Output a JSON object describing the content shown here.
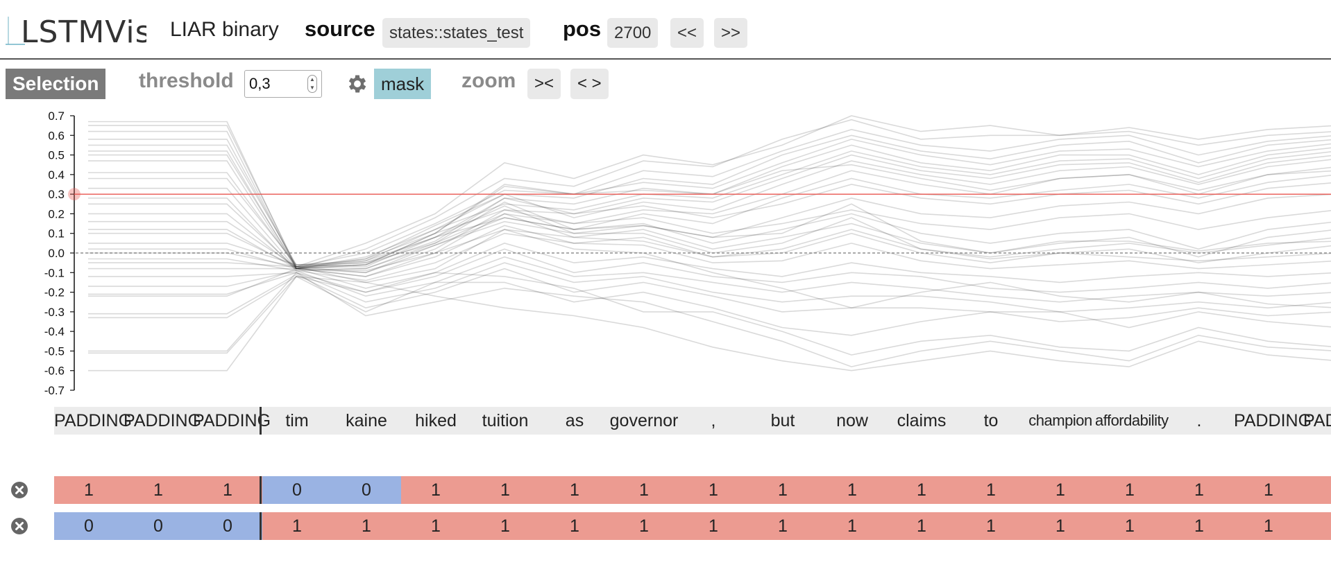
{
  "header": {
    "logo_text": "LSTMVis",
    "dataset_title": "LIAR binary",
    "source_label": "source",
    "source_value": "states::states_test",
    "pos_label": "pos",
    "pos_value": "2700",
    "prev_label": "<<",
    "next_label": ">>"
  },
  "toolbar": {
    "selection_label": "Selection",
    "threshold_label": "threshold",
    "threshold_value": "0,3",
    "settings_icon": "gear-icon",
    "mask_label": "mask",
    "zoom_label": "zoom",
    "zoom_in_label": "><",
    "zoom_out_label": "< >"
  },
  "chart_data": {
    "type": "line",
    "title": "",
    "xlabel": "",
    "ylabel": "",
    "ylim": [
      -0.7,
      0.7
    ],
    "yticks": [
      "0.7",
      "0.6",
      "0.5",
      "0.4",
      "0.3",
      "0.2",
      "0.1",
      "0.0",
      "-0.1",
      "-0.2",
      "-0.3",
      "-0.4",
      "-0.5",
      "-0.6",
      "-0.7"
    ],
    "threshold": 0.3,
    "threshold_color": "#e8554f",
    "zero_line": "dashed",
    "line_color": "#000000",
    "x": [
      "PADDING",
      "PADDING",
      "PADDING",
      "tim",
      "kaine",
      "hiked",
      "tuition",
      "as",
      "governor",
      ",",
      "but",
      "now",
      "claims",
      "to",
      "champion",
      "affordability",
      ".",
      "PADDING",
      "PADDING"
    ],
    "series": [
      {
        "values": [
          0.67,
          0.67,
          0.67,
          -0.08,
          0.02,
          0.18,
          0.38,
          0.34,
          0.47,
          0.44,
          0.58,
          0.68,
          0.58,
          0.6,
          0.6,
          0.62,
          0.55,
          0.6,
          0.62
        ]
      },
      {
        "values": [
          0.65,
          0.65,
          0.65,
          -0.07,
          0.0,
          0.15,
          0.32,
          0.3,
          0.42,
          0.39,
          0.52,
          0.63,
          0.55,
          0.52,
          0.58,
          0.6,
          0.5,
          0.57,
          0.6
        ]
      },
      {
        "values": [
          0.62,
          0.62,
          0.62,
          -0.08,
          -0.02,
          0.12,
          0.3,
          0.28,
          0.38,
          0.35,
          0.5,
          0.6,
          0.52,
          0.48,
          0.55,
          0.57,
          0.46,
          0.55,
          0.58
        ]
      },
      {
        "values": [
          0.58,
          0.58,
          0.58,
          -0.07,
          -0.03,
          0.1,
          0.34,
          0.3,
          0.36,
          0.33,
          0.46,
          0.58,
          0.5,
          0.45,
          0.52,
          0.53,
          0.44,
          0.52,
          0.56
        ]
      },
      {
        "values": [
          0.55,
          0.55,
          0.55,
          -0.06,
          -0.05,
          0.08,
          0.28,
          0.25,
          0.33,
          0.3,
          0.44,
          0.55,
          0.46,
          0.42,
          0.5,
          0.5,
          0.4,
          0.5,
          0.54
        ]
      },
      {
        "values": [
          0.52,
          0.52,
          0.52,
          -0.08,
          -0.04,
          0.12,
          0.25,
          0.22,
          0.3,
          0.28,
          0.4,
          0.52,
          0.44,
          0.4,
          0.47,
          0.48,
          0.38,
          0.48,
          0.52
        ]
      },
      {
        "values": [
          0.5,
          0.5,
          0.5,
          -0.07,
          -0.06,
          0.1,
          0.22,
          0.2,
          0.28,
          0.26,
          0.38,
          0.5,
          0.42,
          0.38,
          0.45,
          0.46,
          0.36,
          0.46,
          0.5
        ]
      },
      {
        "values": [
          0.47,
          0.47,
          0.47,
          -0.08,
          -0.03,
          0.14,
          0.3,
          0.18,
          0.26,
          0.22,
          0.35,
          0.47,
          0.4,
          0.35,
          0.42,
          0.44,
          0.35,
          0.44,
          0.48
        ]
      },
      {
        "values": [
          0.41,
          0.41,
          0.41,
          -0.07,
          -0.08,
          0.05,
          0.2,
          0.15,
          0.22,
          0.2,
          0.3,
          0.42,
          0.35,
          0.3,
          0.38,
          0.4,
          0.3,
          0.4,
          0.44
        ]
      },
      {
        "values": [
          0.38,
          0.38,
          0.38,
          -0.06,
          -0.07,
          0.08,
          0.18,
          0.12,
          0.2,
          0.15,
          0.28,
          0.38,
          0.3,
          0.28,
          0.32,
          0.35,
          0.28,
          0.36,
          0.4
        ]
      },
      {
        "values": [
          0.33,
          0.33,
          0.33,
          -0.08,
          -0.06,
          0.06,
          0.28,
          0.2,
          0.24,
          0.18,
          0.25,
          0.35,
          0.28,
          0.25,
          0.3,
          0.32,
          0.25,
          0.33,
          0.36
        ]
      },
      {
        "values": [
          0.28,
          0.28,
          0.28,
          -0.09,
          -0.08,
          0.04,
          0.16,
          0.1,
          0.14,
          0.08,
          0.18,
          0.28,
          0.2,
          0.18,
          0.24,
          0.26,
          0.2,
          0.28,
          0.3
        ]
      },
      {
        "values": [
          0.2,
          0.2,
          0.2,
          -0.08,
          -0.1,
          0.02,
          0.22,
          0.15,
          0.18,
          0.1,
          0.15,
          0.22,
          0.15,
          0.12,
          0.18,
          0.2,
          0.12,
          0.18,
          0.22
        ]
      },
      {
        "values": [
          0.16,
          0.16,
          0.16,
          -0.07,
          -0.05,
          0.05,
          0.26,
          0.12,
          0.15,
          0.05,
          0.12,
          0.2,
          0.1,
          0.05,
          0.1,
          0.12,
          0.02,
          0.12,
          0.16
        ]
      },
      {
        "values": [
          0.12,
          0.12,
          0.12,
          -0.08,
          -0.09,
          0.0,
          0.2,
          0.08,
          0.12,
          0.02,
          0.08,
          0.15,
          0.05,
          0.0,
          0.05,
          0.08,
          -0.02,
          0.08,
          0.12
        ]
      },
      {
        "values": [
          0.05,
          0.05,
          0.05,
          -0.06,
          -0.04,
          0.08,
          0.24,
          0.1,
          0.1,
          0.0,
          0.05,
          0.18,
          0.02,
          -0.02,
          0.02,
          0.05,
          0.0,
          0.04,
          0.08
        ]
      },
      {
        "values": [
          0.02,
          0.02,
          0.02,
          -0.08,
          -0.12,
          -0.02,
          0.14,
          0.05,
          0.08,
          -0.02,
          0.0,
          0.1,
          0.0,
          -0.05,
          0.0,
          0.02,
          -0.05,
          0.0,
          0.04
        ]
      },
      {
        "values": [
          0.0,
          0.0,
          0.0,
          -0.07,
          -0.1,
          0.04,
          0.18,
          0.12,
          0.14,
          0.08,
          0.1,
          0.25,
          0.06,
          0.0,
          0.06,
          0.06,
          0.01,
          0.05,
          0.06
        ]
      },
      {
        "values": [
          -0.03,
          -0.03,
          -0.03,
          -0.09,
          -0.14,
          -0.05,
          0.1,
          0.05,
          0.04,
          -0.05,
          -0.04,
          0.05,
          -0.04,
          -0.08,
          -0.06,
          -0.04,
          -0.08,
          -0.06,
          -0.04
        ]
      },
      {
        "values": [
          -0.05,
          -0.05,
          -0.05,
          -0.07,
          -0.15,
          -0.08,
          0.12,
          0.08,
          0.06,
          -0.02,
          0.02,
          0.12,
          0.02,
          -0.03,
          0.0,
          -0.02,
          -0.04,
          -0.02,
          0.0
        ]
      },
      {
        "values": [
          -0.08,
          -0.08,
          -0.08,
          -0.08,
          -0.18,
          -0.1,
          0.05,
          -0.05,
          -0.02,
          -0.08,
          -0.12,
          -0.05,
          -0.1,
          -0.12,
          -0.15,
          -0.12,
          -0.1,
          -0.12,
          -0.1
        ]
      },
      {
        "values": [
          -0.12,
          -0.12,
          -0.12,
          -0.1,
          -0.2,
          -0.12,
          0.02,
          -0.1,
          -0.05,
          -0.12,
          -0.15,
          -0.1,
          -0.12,
          -0.18,
          -0.2,
          -0.18,
          -0.15,
          -0.18,
          -0.15
        ]
      },
      {
        "values": [
          -0.17,
          -0.17,
          -0.17,
          -0.09,
          -0.22,
          -0.15,
          -0.02,
          -0.12,
          -0.1,
          -0.15,
          -0.2,
          -0.15,
          -0.18,
          -0.22,
          -0.25,
          -0.22,
          -0.2,
          -0.22,
          -0.2
        ]
      },
      {
        "values": [
          -0.21,
          -0.21,
          -0.21,
          -0.1,
          -0.25,
          -0.18,
          -0.05,
          -0.15,
          -0.12,
          -0.2,
          -0.25,
          -0.22,
          -0.22,
          -0.25,
          -0.3,
          -0.28,
          -0.25,
          -0.28,
          -0.25
        ]
      },
      {
        "values": [
          -0.31,
          -0.31,
          -0.31,
          -0.11,
          -0.28,
          -0.2,
          -0.08,
          -0.2,
          -0.15,
          -0.22,
          -0.3,
          -0.28,
          -0.28,
          -0.3,
          -0.35,
          -0.33,
          -0.28,
          -0.32,
          -0.3
        ]
      },
      {
        "values": [
          -0.33,
          -0.33,
          -0.33,
          -0.12,
          -0.3,
          -0.15,
          -0.15,
          -0.25,
          -0.2,
          -0.28,
          -0.38,
          -0.42,
          -0.35,
          -0.3,
          -0.3,
          -0.38,
          -0.3,
          -0.35,
          -0.38
        ]
      },
      {
        "values": [
          -0.5,
          -0.5,
          -0.5,
          -0.1,
          -0.32,
          -0.25,
          -0.18,
          -0.22,
          -0.25,
          -0.35,
          -0.45,
          -0.58,
          -0.5,
          -0.45,
          -0.5,
          -0.55,
          -0.42,
          -0.48,
          -0.5
        ]
      },
      {
        "values": [
          -0.51,
          -0.51,
          -0.51,
          -0.12,
          -0.2,
          -0.1,
          -0.12,
          -0.18,
          -0.3,
          -0.3,
          -0.4,
          -0.52,
          -0.45,
          -0.42,
          -0.48,
          -0.5,
          -0.38,
          -0.45,
          -0.48
        ]
      },
      {
        "values": [
          -0.6,
          -0.6,
          -0.6,
          -0.12,
          -0.15,
          -0.22,
          -0.28,
          -0.32,
          -0.38,
          -0.48,
          -0.55,
          -0.6,
          -0.55,
          -0.5,
          -0.55,
          -0.58,
          -0.45,
          -0.52,
          -0.55
        ]
      },
      {
        "values": [
          0.1,
          0.1,
          0.1,
          -0.07,
          0.05,
          0.2,
          0.46,
          0.38,
          0.5,
          0.45,
          0.55,
          0.7,
          0.62,
          0.65,
          0.6,
          0.64,
          0.58,
          0.63,
          0.65
        ]
      },
      {
        "values": [
          -0.22,
          -0.22,
          -0.22,
          -0.08,
          -0.12,
          0.0,
          0.12,
          0.02,
          0.0,
          -0.1,
          -0.18,
          -0.28,
          -0.2,
          -0.15,
          -0.22,
          -0.25,
          -0.2,
          -0.26,
          -0.28
        ]
      },
      {
        "values": [
          0.25,
          0.25,
          0.25,
          -0.08,
          -0.06,
          0.1,
          0.35,
          0.3,
          0.32,
          0.3,
          0.42,
          0.45,
          0.38,
          0.32,
          0.38,
          0.4,
          0.32,
          0.4,
          0.42
        ]
      }
    ]
  },
  "words": [
    "PADDING",
    "PADDING",
    "PADDING",
    "tim",
    "kaine",
    "hiked",
    "tuition",
    "as",
    "governor",
    ",",
    "but",
    "now",
    "claims",
    "to",
    "champion",
    "affordability",
    ".",
    "PADDING",
    "PADDING"
  ],
  "annotation_rows": [
    {
      "remove_icon": "close-circle-icon",
      "values": [
        "1",
        "1",
        "1",
        "0",
        "0",
        "1",
        "1",
        "1",
        "1",
        "1",
        "1",
        "1",
        "1",
        "1",
        "1",
        "1",
        "1",
        "1",
        ""
      ]
    },
    {
      "remove_icon": "close-circle-icon",
      "values": [
        "0",
        "0",
        "0",
        "1",
        "1",
        "1",
        "1",
        "1",
        "1",
        "1",
        "1",
        "1",
        "1",
        "1",
        "1",
        "1",
        "1",
        "1",
        ""
      ]
    }
  ],
  "colors": {
    "positive_cell": "#ec9b91",
    "negative_cell": "#9ab3e3",
    "mask_button": "#9fcfd8",
    "selection_tag": "#7a7a7a"
  }
}
